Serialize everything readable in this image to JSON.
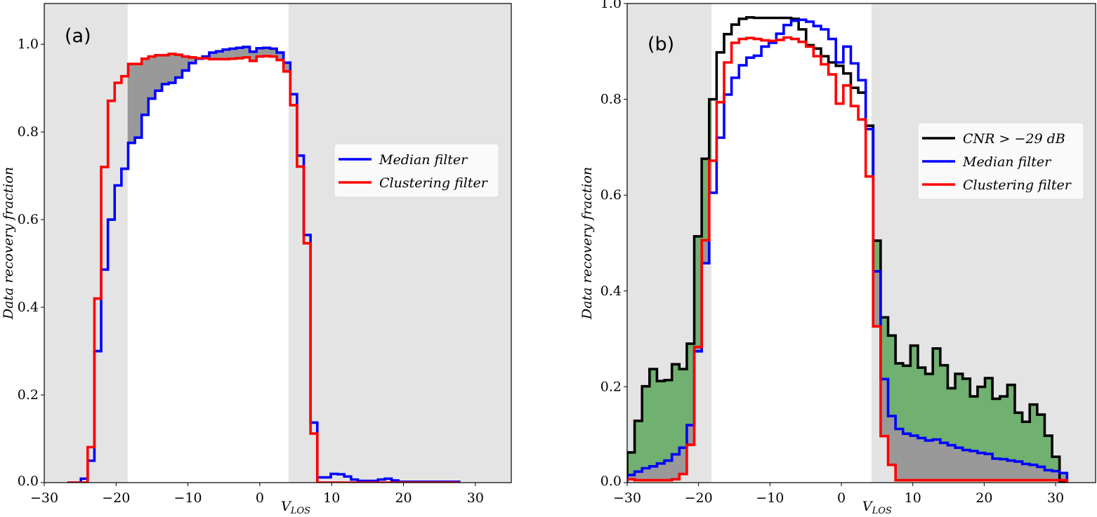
{
  "chart_data": [
    {
      "type": "histogram-step",
      "panel_label": "(a)",
      "xlabel": {
        "main": "V",
        "sub": "LOS"
      },
      "ylabel": "Data recovery fraction",
      "xlim": [
        -30,
        35
      ],
      "ylim": [
        0,
        1.093
      ],
      "xticks": [
        -30,
        -20,
        -10,
        0,
        10,
        20,
        30
      ],
      "xtick_labels": [
        "−30",
        "−20",
        "−10",
        "0",
        "10",
        "20",
        "30"
      ],
      "yticks": [
        0,
        0.2,
        0.4,
        0.6,
        0.8,
        1.0
      ],
      "ytick_labels": [
        "0.0",
        "0.2",
        "0.4",
        "0.6",
        "0.8",
        "1.0"
      ],
      "shaded_spans": [
        [
          -40,
          -18.4
        ],
        [
          4.0,
          40
        ]
      ],
      "shade_color": "#e4e4e4",
      "bin_start": -26.78,
      "bin_width": 0.94,
      "series": [
        {
          "name": "Median filter",
          "color": "#0000ff",
          "values": [
            0,
            0,
            0.009,
            0.05,
            0.3,
            0.486,
            0.6,
            0.678,
            0.716,
            0.775,
            0.787,
            0.839,
            0.876,
            0.894,
            0.909,
            0.912,
            0.924,
            0.94,
            0.957,
            0.967,
            0.972,
            0.981,
            0.984,
            0.988,
            0.99,
            0.992,
            0.994,
            0.983,
            0.991,
            0.992,
            0.99,
            0.981,
            0.958,
            0.886,
            0.746,
            0.565,
            0.137,
            0.012,
            0.012,
            0.02,
            0.019,
            0.014,
            0.007,
            0.004,
            0.004,
            0.004,
            0.007,
            0.009,
            0.005,
            0.002,
            0.002,
            0.002,
            0.002,
            0.002,
            0.002,
            0.002,
            0.002,
            0.002
          ]
        },
        {
          "name": "Clustering filter",
          "color": "#ff0000",
          "values": [
            0,
            0,
            0,
            0.081,
            0.42,
            0.72,
            0.871,
            0.912,
            0.927,
            0.955,
            0.955,
            0.967,
            0.972,
            0.975,
            0.975,
            0.978,
            0.976,
            0.972,
            0.97,
            0.968,
            0.968,
            0.966,
            0.966,
            0.966,
            0.967,
            0.968,
            0.97,
            0.962,
            0.972,
            0.973,
            0.972,
            0.964,
            0.938,
            0.861,
            0.721,
            0.546,
            0.112,
            0,
            0,
            0,
            0,
            0,
            0,
            0,
            0,
            0,
            0,
            0,
            0,
            0,
            0,
            0,
            0,
            0,
            0,
            0,
            0,
            0
          ]
        }
      ],
      "fills": [
        {
          "between": [
            "Median filter",
            "Clustering filter"
          ],
          "range": [
            -18.4,
            4.0
          ],
          "color": "#999999"
        }
      ],
      "legend": {
        "placement": "center-right",
        "entries": [
          "Median filter",
          "Clustering filter"
        ]
      }
    },
    {
      "type": "histogram-step",
      "panel_label": "(b)",
      "xlabel": {
        "main": "V",
        "sub": "LOS"
      },
      "ylabel": "Data recovery fraction",
      "xlim": [
        -30,
        35.6
      ],
      "ylim": [
        0,
        1.0
      ],
      "xticks": [
        -30,
        -20,
        -10,
        0,
        10,
        20,
        30
      ],
      "xtick_labels": [
        "−30",
        "−20",
        "−10",
        "0",
        "10",
        "20",
        "30"
      ],
      "yticks": [
        0,
        0.2,
        0.4,
        0.6,
        0.8,
        1.0
      ],
      "ytick_labels": [
        "0.0",
        "0.2",
        "0.4",
        "0.6",
        "0.8",
        "1.0"
      ],
      "shaded_spans": [
        [
          -40,
          -18.2
        ],
        [
          4.2,
          40
        ]
      ],
      "shade_color": "#e4e4e4",
      "bin_start": -30,
      "bin_width": 1.044,
      "series": [
        {
          "name": "CNR > −29 dB",
          "color": "#000000",
          "values": [
            0.063,
            0.129,
            0.201,
            0.237,
            0.212,
            0.214,
            0.247,
            0.237,
            0.29,
            0.514,
            0.676,
            0.8,
            0.898,
            0.936,
            0.956,
            0.968,
            0.971,
            0.97,
            0.97,
            0.97,
            0.97,
            0.97,
            0.968,
            0.946,
            0.913,
            0.906,
            0.89,
            0.877,
            0.87,
            0.854,
            0.824,
            0.814,
            0.745,
            0.505,
            0.345,
            0.307,
            0.249,
            0.244,
            0.286,
            0.24,
            0.227,
            0.28,
            0.245,
            0.197,
            0.227,
            0.217,
            0.18,
            0.2,
            0.218,
            0.175,
            0.18,
            0.204,
            0.146,
            0.127,
            0.163,
            0.142,
            0.098,
            0.054,
            0
          ]
        },
        {
          "name": "Median filter",
          "color": "#0000ff",
          "values": [
            0.016,
            0.023,
            0.03,
            0.034,
            0.04,
            0.046,
            0.059,
            0.073,
            0.12,
            0.274,
            0.458,
            0.605,
            0.72,
            0.81,
            0.845,
            0.871,
            0.887,
            0.891,
            0.91,
            0.918,
            0.937,
            0.955,
            0.964,
            0.966,
            0.962,
            0.953,
            0.946,
            0.926,
            0.877,
            0.91,
            0.875,
            0.84,
            0.738,
            0.441,
            0.216,
            0.139,
            0.112,
            0.102,
            0.098,
            0.093,
            0.088,
            0.09,
            0.083,
            0.078,
            0.073,
            0.068,
            0.066,
            0.062,
            0.06,
            0.05,
            0.049,
            0.046,
            0.044,
            0.039,
            0.037,
            0.033,
            0.026,
            0.024,
            0.02
          ]
        },
        {
          "name": "Clustering filter",
          "color": "#ff0000",
          "values": [
            0.007,
            0.005,
            0.005,
            0.005,
            0.005,
            0.005,
            0.007,
            0.018,
            0.079,
            0.283,
            0.506,
            0.672,
            0.794,
            0.877,
            0.918,
            0.926,
            0.928,
            0.926,
            0.923,
            0.922,
            0.924,
            0.929,
            0.926,
            0.92,
            0.91,
            0.89,
            0.873,
            0.852,
            0.791,
            0.829,
            0.786,
            0.758,
            0.639,
            0.326,
            0.097,
            0.037,
            0.005,
            0.005,
            0.005,
            0.005,
            0.005,
            0.005,
            0.005,
            0.005,
            0.005,
            0.005,
            0.005,
            0.005,
            0.005,
            0.005,
            0.005,
            0.005,
            0.005,
            0.005,
            0.005,
            0.005,
            0.005,
            0.005,
            0.005
          ]
        }
      ],
      "fills": [
        {
          "between": [
            "CNR > −29 dB",
            "Median filter"
          ],
          "range": [
            -30,
            -18.2
          ],
          "color": "#70b070"
        },
        {
          "between": [
            "CNR > −29 dB",
            "Median filter"
          ],
          "range": [
            4.2,
            40
          ],
          "color": "#70b070"
        },
        {
          "between": [
            "Median filter",
            "Clustering filter"
          ],
          "range": [
            -30,
            -18.2
          ],
          "color": "#999999"
        },
        {
          "between": [
            "Median filter",
            "Clustering filter"
          ],
          "range": [
            4.2,
            40
          ],
          "color": "#999999"
        }
      ],
      "legend": {
        "placement": "upper-right",
        "entries": [
          "CNR > −29 dB",
          "Median filter",
          "Clustering filter"
        ]
      }
    }
  ]
}
